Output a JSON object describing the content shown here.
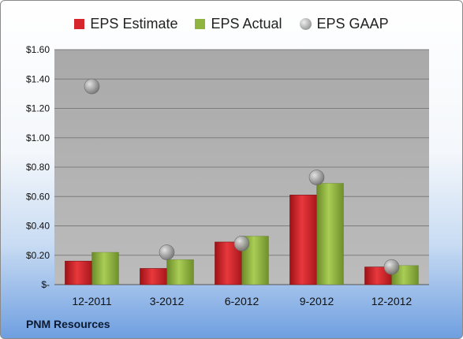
{
  "legend": {
    "estimate": "EPS Estimate",
    "actual": "EPS Actual",
    "gaap": "EPS GAAP"
  },
  "company": "PNM Resources",
  "colors": {
    "estimate": "#d6262b",
    "actual": "#8fb43f",
    "gaap": "#a8a8a8",
    "plot_bg": "#b3b3b3"
  },
  "chart_data": {
    "type": "bar",
    "categories": [
      "12-2011",
      "3-2012",
      "6-2012",
      "9-2012",
      "12-2012"
    ],
    "series": [
      {
        "name": "EPS Estimate",
        "type": "bar",
        "values": [
          0.16,
          0.11,
          0.29,
          0.61,
          0.12
        ]
      },
      {
        "name": "EPS Actual",
        "type": "bar",
        "values": [
          0.22,
          0.17,
          0.33,
          0.69,
          0.13
        ]
      },
      {
        "name": "EPS GAAP",
        "type": "scatter",
        "values": [
          1.35,
          0.22,
          0.28,
          0.73,
          0.12
        ]
      }
    ],
    "ylim": [
      0,
      1.6
    ],
    "yticks": [
      0,
      0.2,
      0.4,
      0.6,
      0.8,
      1.0,
      1.2,
      1.4,
      1.6
    ],
    "ytick_labels": [
      "$-",
      "$0.20",
      "$0.40",
      "$0.60",
      "$0.80",
      "$1.00",
      "$1.20",
      "$1.40",
      "$1.60"
    ],
    "grid": true,
    "legend_position": "top"
  }
}
